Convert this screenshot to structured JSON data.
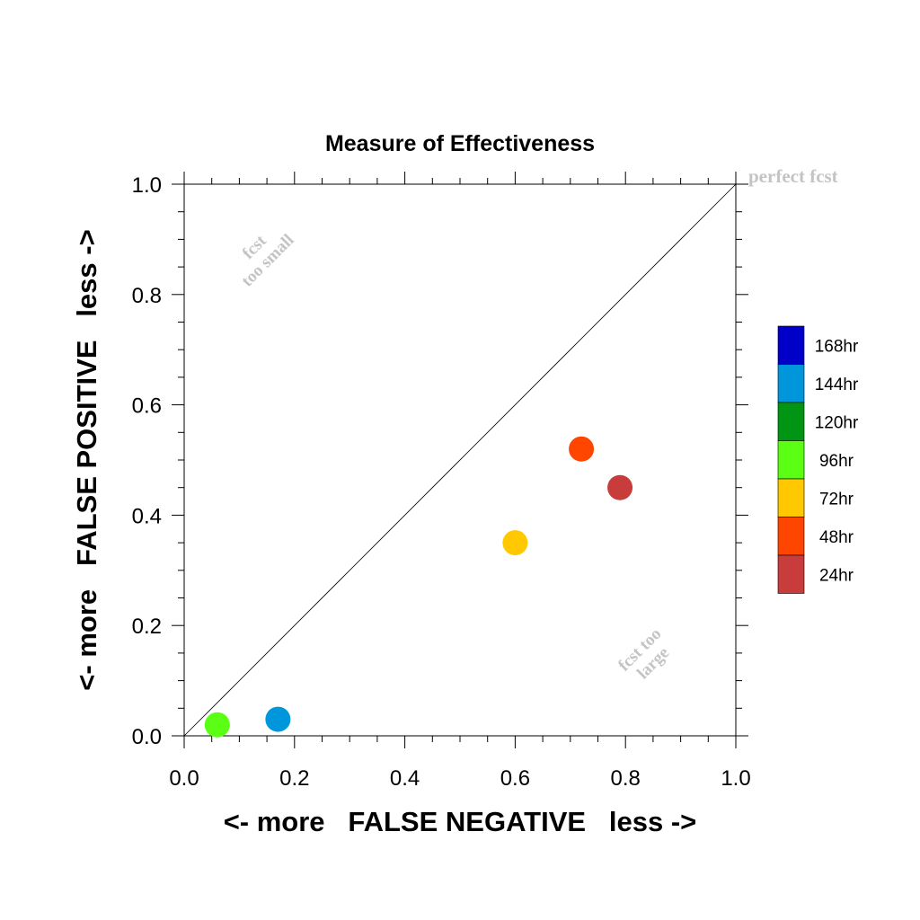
{
  "chart_data": {
    "type": "scatter",
    "title": "Measure of Effectiveness",
    "xlabel": "<- more   FALSE NEGATIVE   less ->",
    "ylabel": "<- more   FALSE POSITIVE   less ->",
    "xlim": [
      0.0,
      1.0
    ],
    "ylim": [
      0.0,
      1.0
    ],
    "xticks": [
      "0.0",
      "0.2",
      "0.4",
      "0.6",
      "0.8",
      "1.0"
    ],
    "yticks": [
      "0.0",
      "0.2",
      "0.4",
      "0.6",
      "0.8",
      "1.0"
    ],
    "grid": false,
    "diagonal_line": true,
    "annotations": {
      "perfect": "perfect fcst",
      "too_small_line1": "fcst",
      "too_small_line2": "too small",
      "too_large_line1": "fcst too",
      "too_large_line2": "large"
    },
    "legend": {
      "placement": "right",
      "entries": [
        {
          "label": "168hr",
          "color": "#0000C8"
        },
        {
          "label": "144hr",
          "color": "#0096DC"
        },
        {
          "label": "120hr",
          "color": "#009614"
        },
        {
          "label": "96hr",
          "color": "#5AFF14"
        },
        {
          "label": "72hr",
          "color": "#FFC800"
        },
        {
          "label": "48hr",
          "color": "#FF4600"
        },
        {
          "label": "24hr",
          "color": "#C83C3C"
        }
      ]
    },
    "points": [
      {
        "series": "24hr",
        "x": 0.79,
        "y": 0.45,
        "color": "#C83C3C"
      },
      {
        "series": "48hr",
        "x": 0.72,
        "y": 0.52,
        "color": "#FF4600"
      },
      {
        "series": "72hr",
        "x": 0.6,
        "y": 0.35,
        "color": "#FFC800"
      },
      {
        "series": "96hr",
        "x": 0.06,
        "y": 0.02,
        "color": "#5AFF14"
      },
      {
        "series": "144hr",
        "x": 0.17,
        "y": 0.03,
        "color": "#0096DC"
      }
    ]
  }
}
